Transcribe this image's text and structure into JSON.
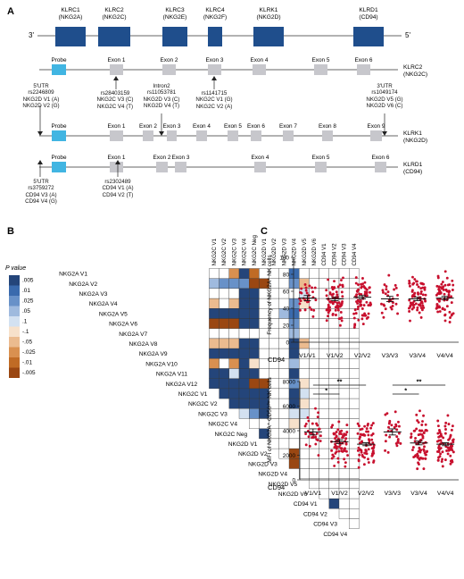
{
  "panels": {
    "a": "A",
    "b": "B",
    "c": "C"
  },
  "panel_a": {
    "strand_3": "3'",
    "strand_5": "5'",
    "genes": [
      {
        "name": "KLRC1",
        "alias": "(NKG2A)"
      },
      {
        "name": "KLRC2",
        "alias": "(NKG2C)"
      },
      {
        "name": "KLRC3",
        "alias": "(NKG2E)"
      },
      {
        "name": "KLRC4",
        "alias": "(NKG2F)"
      },
      {
        "name": "KLRK1",
        "alias": "(NKG2D)"
      },
      {
        "name": "KLRD1",
        "alias": "(CD94)"
      }
    ],
    "tracks": [
      {
        "name": "KLRC2",
        "alias": "(NKG2C)"
      },
      {
        "name": "KLRK1",
        "alias": "(NKG2D)"
      },
      {
        "name": "KLRD1",
        "alias": "(CD94)"
      }
    ],
    "track1_labels": [
      "Probe",
      "Exon 1",
      "Exon 2",
      "Exon 3",
      "Exon 4",
      "Exon 5",
      "Exon 6"
    ],
    "track2_labels": [
      "Probe",
      "Exon 1",
      "Exon 2",
      "Exon 3",
      "Exon 4",
      "Exon 5",
      "Exon 6",
      "Exon 7",
      "Exon 8",
      "Exon 9"
    ],
    "track3_labels": [
      "Probe",
      "Exon 1",
      "Exon 2",
      "Exon 3",
      "Exon 4",
      "Exon 5",
      "Exon 6"
    ],
    "snps_nkg2c": [
      [
        "5'UTR",
        "rs2246809",
        "NKG2D V1 (A)",
        "NKG2D V2 (G)"
      ],
      [
        "rs28403159",
        "NKG2C V3 (C)",
        "NKG2C V4 (T)"
      ],
      [
        "Intron2",
        "rs11053781",
        "NKG2D V3 (C)",
        "NKG2D V4 (T)"
      ],
      [
        "rs1141715",
        "NKG2C V1 (G)",
        "NKG2C V2 (A)"
      ],
      [
        "3'UTR",
        "rs1049174",
        "NKG2D V5 (G)",
        "NKG2D V6 (C)"
      ]
    ],
    "snps_cd94": [
      [
        "5'UTR",
        "rs3759272",
        "CD94 V3 (A)",
        "CD94 V4 (G)"
      ],
      [
        "rs2302489",
        "CD94 V1 (A)",
        "CD94 V2 (T)"
      ]
    ]
  },
  "panel_b": {
    "legend_title": "P value",
    "legend_labels": [
      ".005",
      ".01",
      ".025",
      ".05",
      ".1",
      "-.1",
      "-.05",
      "-.025",
      "-.01",
      "-.005"
    ],
    "legend_colors": [
      "#24457a",
      "#3a6aad",
      "#6891c8",
      "#9fbade",
      "#d3e1f1",
      "#f7e1cb",
      "#ebbb8f",
      "#d99050",
      "#c06b25",
      "#9a4712"
    ],
    "variables": [
      "NKG2A V1",
      "NKG2A V2",
      "NKG2A V3",
      "NKG2A V4",
      "NKG2A V5",
      "NKG2A V6",
      "NKG2A V7",
      "NKG2A V8",
      "NKG2A V9",
      "NKG2A V10",
      "NKG2A V11",
      "NKG2A V12",
      "NKG2C V1",
      "NKG2C V2",
      "NKG2C V3",
      "NKG2C V4",
      "NKG2C Neg",
      "NKG2D V1",
      "NKG2D V2",
      "NKG2D V3",
      "NKG2D V4",
      "NKG2D V5",
      "NKG2D V6",
      "CD94 V1",
      "CD94 V2",
      "CD94 V3",
      "CD94 V4"
    ],
    "col_start": 12
  },
  "panel_c": {
    "top_ylabel": "Frequency of NKG2A⁺ NK cells",
    "bottom_ylabel": "MFI of NKG2A⁺ CD56ᵈⁱᵐ NK cells",
    "xaxis_title": "CD94",
    "top_yticks": [
      "0",
      "20",
      "40",
      "60",
      "80",
      "100"
    ],
    "bottom_yticks": [
      "0",
      "2000",
      "4000",
      "6000",
      "8000"
    ],
    "sig_marks": [
      "*",
      "**",
      "*",
      "**"
    ]
  },
  "chart_data": [
    {
      "type": "heatmap",
      "title": "",
      "rows": [
        "NKG2A V1",
        "NKG2A V2",
        "NKG2A V3",
        "NKG2A V4",
        "NKG2A V5",
        "NKG2A V6",
        "NKG2A V7",
        "NKG2A V8",
        "NKG2A V9",
        "NKG2A V10",
        "NKG2A V11",
        "NKG2A V12",
        "NKG2C V1",
        "NKG2C V2",
        "NKG2C V3",
        "NKG2C V4",
        "NKG2C Neg",
        "NKG2D V1",
        "NKG2D V2",
        "NKG2D V3",
        "NKG2D V4",
        "NKG2D V5",
        "NKG2D V6",
        "CD94 V1",
        "CD94 V2",
        "CD94 V3",
        "CD94 V4"
      ],
      "columns": [
        "NKG2C V1",
        "NKG2C V2",
        "NKG2C V3",
        "NKG2C V4",
        "NKG2C Neg",
        "NKG2D V1",
        "NKG2D V2",
        "NKG2D V3",
        "NKG2D V4",
        "NKG2D V5",
        "NKG2D V6",
        "CD94 V1",
        "CD94 V2",
        "CD94 V3",
        "CD94 V4"
      ],
      "values": [
        [
          0,
          0,
          -0.025,
          0.005,
          -0.01,
          0,
          0,
          0,
          0.01,
          0,
          0,
          0,
          0,
          0,
          0
        ],
        [
          0.05,
          0.025,
          0.025,
          0.025,
          -0.005,
          -0.005,
          0,
          0,
          0.025,
          -0.05,
          0,
          0,
          0,
          0,
          0
        ],
        [
          0,
          0,
          0,
          0.005,
          0.005,
          0,
          0,
          0,
          0,
          0.1,
          0,
          0,
          0,
          0,
          0
        ],
        [
          -0.05,
          0,
          -0.05,
          0.005,
          0.005,
          0,
          0,
          0,
          0.025,
          -0.1,
          0,
          0,
          0,
          0,
          0
        ],
        [
          0.005,
          0.005,
          0.005,
          0.005,
          0.005,
          0,
          0,
          0.05,
          0.01,
          0,
          0,
          0,
          0,
          0,
          0
        ],
        [
          -0.005,
          -0.005,
          -0.005,
          0.005,
          0.005,
          0,
          0,
          0,
          0.025,
          0,
          0,
          0,
          0,
          0,
          0
        ],
        [
          0,
          0,
          0,
          0,
          0,
          0,
          0,
          0,
          0.05,
          0,
          0,
          0,
          0,
          0,
          0
        ],
        [
          -0.05,
          -0.05,
          -0.05,
          0.005,
          0.005,
          0,
          0,
          0,
          0.005,
          -0.05,
          0,
          0,
          0,
          0,
          0
        ],
        [
          0.005,
          0.005,
          0.005,
          0.005,
          0.005,
          0,
          0,
          0,
          0.005,
          0,
          0,
          0,
          0,
          0,
          0
        ],
        [
          -0.025,
          0,
          -0.025,
          0.005,
          -0.1,
          0,
          0,
          0,
          0.05,
          0,
          0,
          0,
          0,
          0,
          0
        ],
        [
          0.005,
          0.005,
          0.1,
          0.005,
          0.005,
          0,
          0,
          0,
          0.005,
          0,
          0,
          0,
          0,
          0,
          0
        ],
        [
          0.005,
          0.005,
          0.005,
          0.005,
          -0.005,
          -0.005,
          0,
          0,
          0.025,
          -0.1,
          0,
          0,
          0,
          0,
          0
        ],
        [
          null,
          0.005,
          0.005,
          0.005,
          0.005,
          0.005,
          0,
          0,
          0.005,
          0.1,
          0,
          0,
          0,
          0,
          0
        ],
        [
          null,
          null,
          0.005,
          0.005,
          0.005,
          0.005,
          0,
          0,
          0.005,
          -0.1,
          0,
          0,
          0,
          0,
          0
        ],
        [
          null,
          null,
          null,
          0.1,
          0.025,
          0.005,
          0,
          0,
          0.1,
          0.1,
          0,
          0,
          0,
          0,
          0
        ],
        [
          null,
          null,
          null,
          null,
          0,
          0,
          0,
          0,
          -0.1,
          0,
          0,
          0,
          0,
          0,
          0
        ],
        [
          null,
          null,
          null,
          null,
          null,
          0.005,
          0,
          0,
          0,
          0,
          0,
          0,
          0,
          0,
          0
        ],
        [
          null,
          null,
          null,
          null,
          null,
          null,
          0,
          0,
          0,
          0,
          0,
          0,
          0,
          0,
          0
        ],
        [
          null,
          null,
          null,
          null,
          null,
          null,
          null,
          0,
          -0.005,
          0,
          0,
          0,
          0,
          0,
          0
        ],
        [
          null,
          null,
          null,
          null,
          null,
          null,
          null,
          null,
          -0.005,
          0,
          0,
          0,
          0,
          0,
          0
        ],
        [
          null,
          null,
          null,
          null,
          null,
          null,
          null,
          null,
          null,
          0,
          0,
          0,
          0,
          0,
          0
        ],
        [
          null,
          null,
          null,
          null,
          null,
          null,
          null,
          null,
          null,
          null,
          0,
          0,
          0,
          0,
          0
        ],
        [
          null,
          null,
          null,
          null,
          null,
          null,
          null,
          null,
          null,
          null,
          null,
          0,
          0,
          0,
          0
        ],
        [
          null,
          null,
          null,
          null,
          null,
          null,
          null,
          null,
          null,
          null,
          null,
          null,
          0.005,
          0,
          0
        ],
        [
          null,
          null,
          null,
          null,
          null,
          null,
          null,
          null,
          null,
          null,
          null,
          null,
          null,
          0,
          0
        ],
        [
          null,
          null,
          null,
          null,
          null,
          null,
          null,
          null,
          null,
          null,
          null,
          null,
          null,
          null,
          0
        ],
        [
          null,
          null,
          null,
          null,
          null,
          null,
          null,
          null,
          null,
          null,
          null,
          null,
          null,
          null,
          null
        ]
      ]
    },
    {
      "type": "scatter",
      "title": "",
      "xlabel": "CD94",
      "ylabel": "Frequency of NKG2A⁺ NK cells",
      "ylim": [
        0,
        100
      ],
      "categories": [
        "V1/V1",
        "V1/V2",
        "V2/V2",
        "V3/V3",
        "V3/V4",
        "V4/V4"
      ],
      "mean": [
        52,
        51,
        53,
        51,
        51,
        52
      ],
      "sem": [
        3,
        2,
        2,
        3,
        2,
        2
      ],
      "n": [
        30,
        70,
        70,
        30,
        70,
        70
      ],
      "range": [
        [
          18,
          82
        ],
        [
          14,
          92
        ],
        [
          8,
          92
        ],
        [
          17,
          80
        ],
        [
          15,
          90
        ],
        [
          12,
          89
        ]
      ]
    },
    {
      "type": "scatter",
      "title": "",
      "xlabel": "CD94",
      "ylabel": "MFI of NKG2A⁺ CD56ᵈⁱᵐ NK cells",
      "ylim": [
        0,
        8000
      ],
      "categories": [
        "V1/V1",
        "V1/V2",
        "V2/V2",
        "V3/V3",
        "V3/V4",
        "V4/V4"
      ],
      "mean": [
        3900,
        3100,
        2900,
        3900,
        3000,
        2900
      ],
      "sem": [
        250,
        150,
        120,
        250,
        150,
        120
      ],
      "n": [
        30,
        70,
        70,
        30,
        70,
        70
      ],
      "range": [
        [
          1300,
          6500
        ],
        [
          900,
          6000
        ],
        [
          1000,
          5800
        ],
        [
          1200,
          6500
        ],
        [
          900,
          6200
        ],
        [
          1100,
          6000
        ]
      ],
      "significance": [
        {
          "from": "V1/V1",
          "to": "V1/V2",
          "mark": "*"
        },
        {
          "from": "V1/V1",
          "to": "V2/V2",
          "mark": "**"
        },
        {
          "from": "V3/V3",
          "to": "V3/V4",
          "mark": "*"
        },
        {
          "from": "V3/V3",
          "to": "V4/V4",
          "mark": "**"
        }
      ]
    }
  ]
}
